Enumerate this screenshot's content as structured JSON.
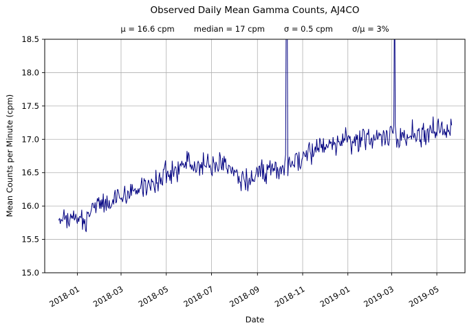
{
  "figure": {
    "stats": [
      "μ = 16.6 cpm",
      "median = 17 cpm",
      "σ = 0.5 cpm",
      "σ/μ = 3%"
    ]
  },
  "chart_data": {
    "type": "line",
    "title": "Observed Daily Mean Gamma Counts, AJ4CO",
    "subtitle": "μ = 16.6 cpm      median = 17 cpm      σ = 0.5 cpm      σ/μ = 3%",
    "xlabel": "Date",
    "ylabel": "Mean Counts per Minute (cpm)",
    "ylim": [
      15.0,
      18.5
    ],
    "yticks": [
      15.0,
      15.5,
      16.0,
      16.5,
      17.0,
      17.5,
      18.0,
      18.5
    ],
    "ytick_labels": [
      "15.0",
      "15.5",
      "16.0",
      "16.5",
      "17.0",
      "17.5",
      "18.0",
      "18.5"
    ],
    "xtick_labels": [
      "2018-01",
      "2018-03",
      "2018-05",
      "2018-07",
      "2018-09",
      "2018-11",
      "2019-01",
      "2019-03",
      "2019-05"
    ],
    "xlim": [
      "2017-11-18",
      "2019-06-08"
    ],
    "data_start": "2017-12-07",
    "data_end": "2019-05-21",
    "grid": true,
    "legend": "none",
    "line_color": "#000080",
    "grid_color": "#b0b0b0",
    "stats": {
      "mean_cpm": 16.6,
      "median_cpm": 17,
      "sigma_cpm": 0.5,
      "sigma_over_mean_pct": 3
    },
    "trend_anchors": [
      {
        "date": "2017-12-08",
        "value": 15.85
      },
      {
        "date": "2017-12-16",
        "value": 15.75
      },
      {
        "date": "2017-12-24",
        "value": 15.82
      },
      {
        "date": "2018-01-02",
        "value": 15.88
      },
      {
        "date": "2018-01-10",
        "value": 15.72
      },
      {
        "date": "2018-01-18",
        "value": 15.95
      },
      {
        "date": "2018-01-26",
        "value": 16.02
      },
      {
        "date": "2018-02-08",
        "value": 16.05
      },
      {
        "date": "2018-02-20",
        "value": 16.1
      },
      {
        "date": "2018-03-04",
        "value": 16.12
      },
      {
        "date": "2018-03-16",
        "value": 16.22
      },
      {
        "date": "2018-03-28",
        "value": 16.28
      },
      {
        "date": "2018-04-10",
        "value": 16.32
      },
      {
        "date": "2018-04-22",
        "value": 16.4
      },
      {
        "date": "2018-05-04",
        "value": 16.48
      },
      {
        "date": "2018-05-16",
        "value": 16.55
      },
      {
        "date": "2018-05-28",
        "value": 16.62
      },
      {
        "date": "2018-06-10",
        "value": 16.6
      },
      {
        "date": "2018-06-22",
        "value": 16.65
      },
      {
        "date": "2018-07-04",
        "value": 16.6
      },
      {
        "date": "2018-07-16",
        "value": 16.62
      },
      {
        "date": "2018-07-28",
        "value": 16.55
      },
      {
        "date": "2018-08-08",
        "value": 16.45
      },
      {
        "date": "2018-08-20",
        "value": 16.42
      },
      {
        "date": "2018-09-02",
        "value": 16.5
      },
      {
        "date": "2018-09-14",
        "value": 16.52
      },
      {
        "date": "2018-09-26",
        "value": 16.58
      },
      {
        "date": "2018-10-08",
        "value": 16.55
      },
      {
        "date": "2018-10-20",
        "value": 16.62
      },
      {
        "date": "2018-11-01",
        "value": 16.72
      },
      {
        "date": "2018-11-14",
        "value": 16.82
      },
      {
        "date": "2018-11-26",
        "value": 16.88
      },
      {
        "date": "2018-12-08",
        "value": 16.9
      },
      {
        "date": "2018-12-20",
        "value": 16.95
      },
      {
        "date": "2019-01-02",
        "value": 17.0
      },
      {
        "date": "2019-01-14",
        "value": 16.98
      },
      {
        "date": "2019-01-26",
        "value": 17.02
      },
      {
        "date": "2019-02-08",
        "value": 17.05
      },
      {
        "date": "2019-02-20",
        "value": 17.02
      },
      {
        "date": "2019-03-04",
        "value": 17.05
      },
      {
        "date": "2019-03-16",
        "value": 17.05
      },
      {
        "date": "2019-03-28",
        "value": 17.08
      },
      {
        "date": "2019-04-10",
        "value": 17.08
      },
      {
        "date": "2019-04-22",
        "value": 17.12
      },
      {
        "date": "2019-05-04",
        "value": 17.12
      },
      {
        "date": "2019-05-20",
        "value": 17.15
      }
    ],
    "noise_sigma_cpm": 0.09,
    "spikes": [
      {
        "date": "2018-10-10",
        "exceeds_top_of_axis": true
      },
      {
        "date": "2018-10-11",
        "exceeds_top_of_axis": true
      },
      {
        "date": "2019-03-05",
        "exceeds_top_of_axis": true
      }
    ]
  }
}
